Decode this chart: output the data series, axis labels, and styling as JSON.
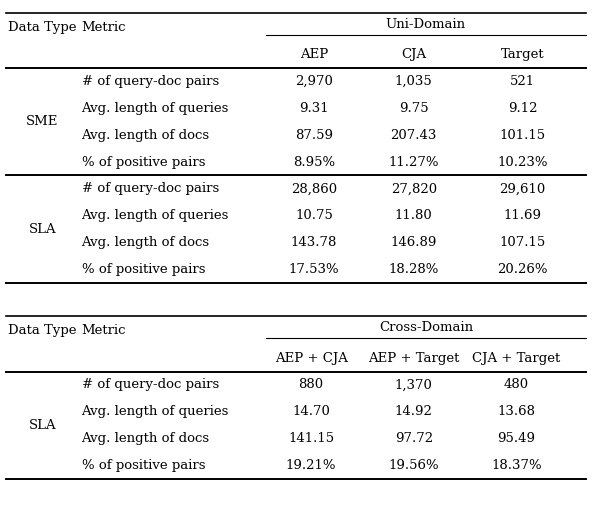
{
  "font_size": 9.5,
  "font_family": "DejaVu Serif",
  "fig_w": 6.04,
  "fig_h": 5.16,
  "table1": {
    "title": "Uni-Domain",
    "col0_label": "Data Type",
    "col1_label": "Metric",
    "col_headers": [
      "AEP",
      "CJA",
      "Target"
    ],
    "groups": [
      {
        "label": "SME",
        "rows": [
          [
            "# of query-doc pairs",
            "2,970",
            "1,035",
            "521"
          ],
          [
            "Avg. length of queries",
            "9.31",
            "9.75",
            "9.12"
          ],
          [
            "Avg. length of docs",
            "87.59",
            "207.43",
            "101.15"
          ],
          [
            "% of positive pairs",
            "8.95%",
            "11.27%",
            "10.23%"
          ]
        ]
      },
      {
        "label": "SLA",
        "rows": [
          [
            "# of query-doc pairs",
            "28,860",
            "27,820",
            "29,610"
          ],
          [
            "Avg. length of queries",
            "10.75",
            "11.80",
            "11.69"
          ],
          [
            "Avg. length of docs",
            "143.78",
            "146.89",
            "107.15"
          ],
          [
            "% of positive pairs",
            "17.53%",
            "18.28%",
            "20.26%"
          ]
        ]
      }
    ]
  },
  "table2": {
    "title": "Cross-Domain",
    "col0_label": "Data Type",
    "col1_label": "Metric",
    "col_headers": [
      "AEP + CJA",
      "AEP + Target",
      "CJA + Target"
    ],
    "groups": [
      {
        "label": "SLA",
        "rows": [
          [
            "# of query-doc pairs",
            "880",
            "1,370",
            "480"
          ],
          [
            "Avg. length of queries",
            "14.70",
            "14.92",
            "13.68"
          ],
          [
            "Avg. length of docs",
            "141.15",
            "97.72",
            "95.49"
          ],
          [
            "% of positive pairs",
            "19.21%",
            "19.56%",
            "18.37%"
          ]
        ]
      }
    ]
  }
}
